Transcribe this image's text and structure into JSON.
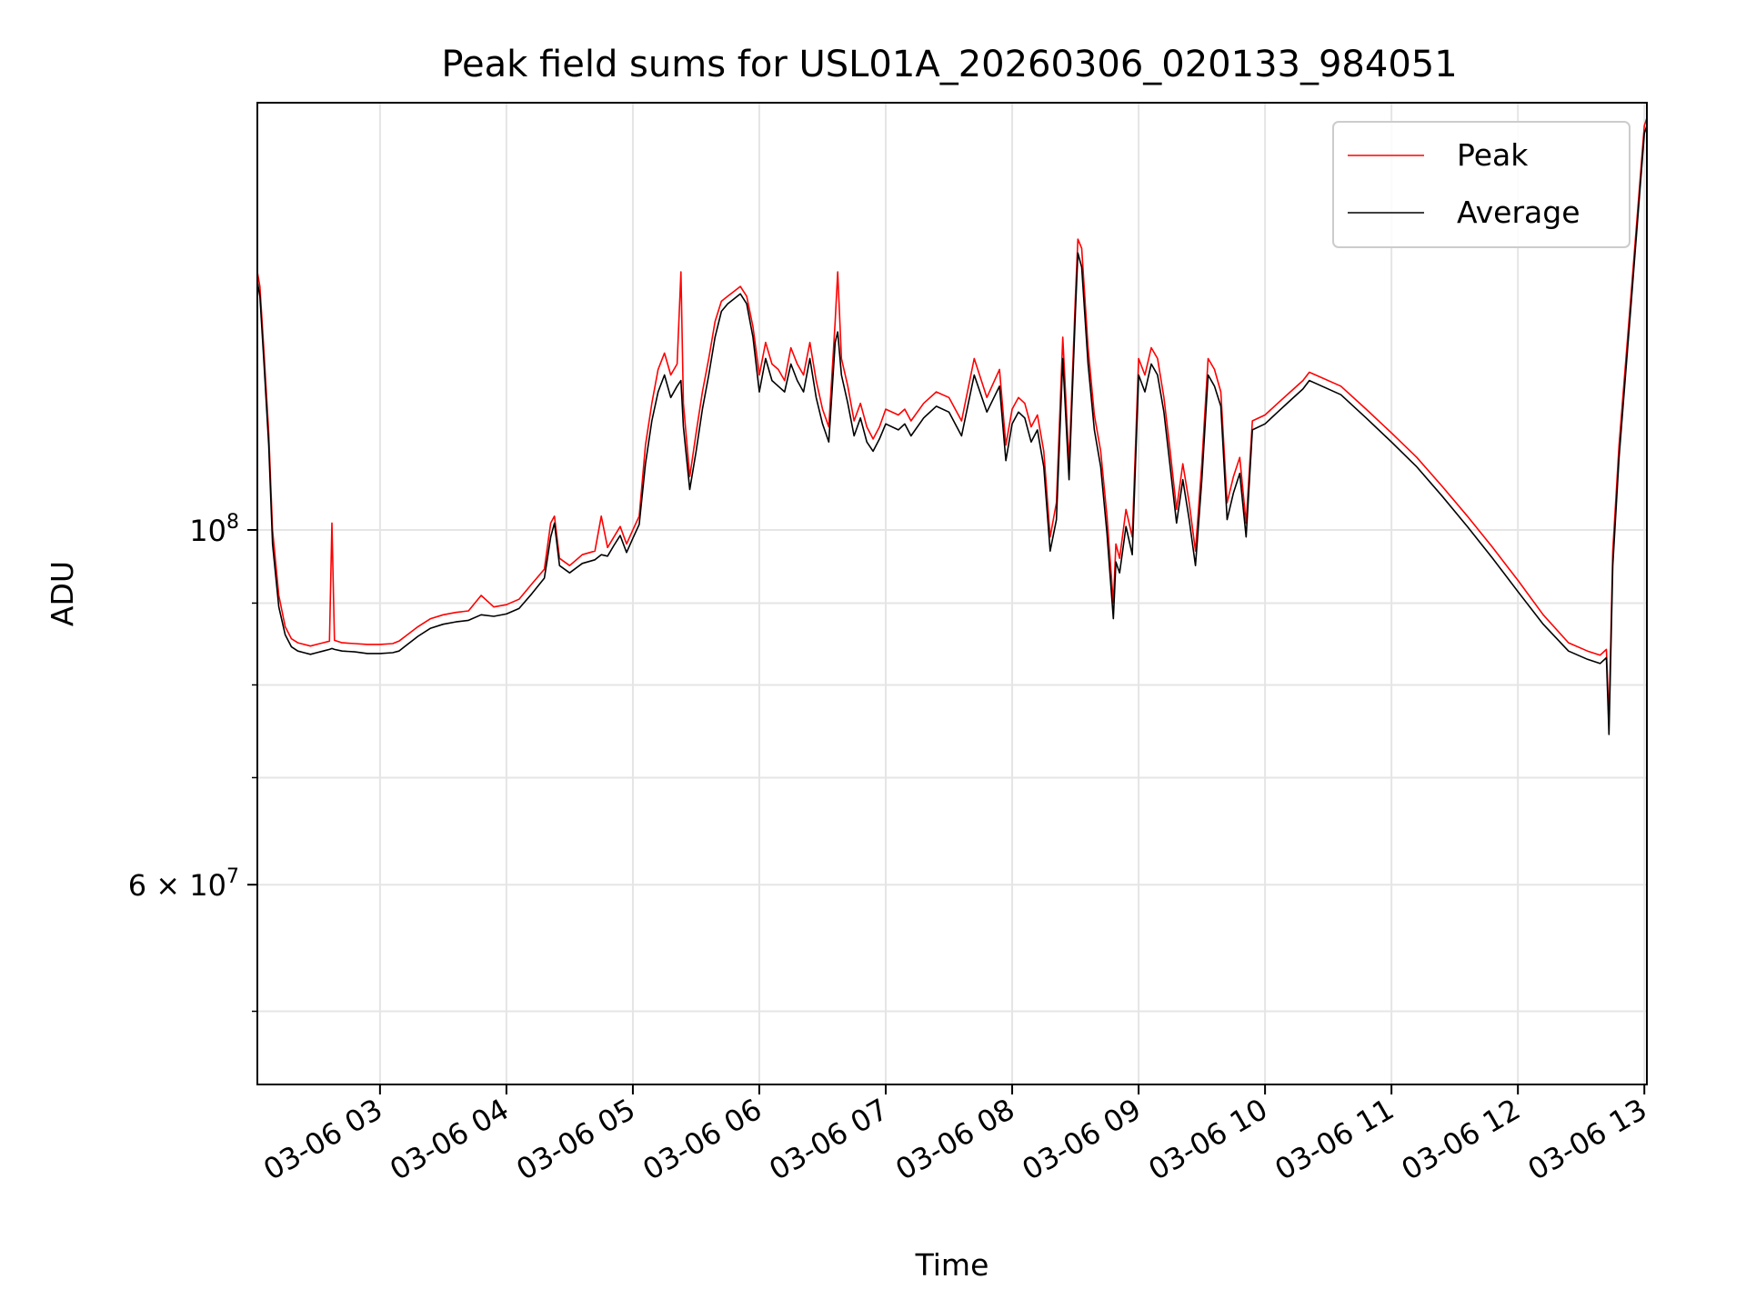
{
  "chart_data": {
    "type": "line",
    "title": "Peak field sums for USL01A_20260306_020133_984051",
    "xlabel": "Time",
    "ylabel": "ADU",
    "yscale": "log",
    "ylim": [
      45000000,
      185000000
    ],
    "xlim_hours": [
      2.03,
      13.02
    ],
    "x_unit": "hours since 2026-03-06 00:00",
    "grid": true,
    "legend_position": "top-right",
    "x_ticks": [
      {
        "value": 3,
        "label": "03-06 03"
      },
      {
        "value": 4,
        "label": "03-06 04"
      },
      {
        "value": 5,
        "label": "03-06 05"
      },
      {
        "value": 6,
        "label": "03-06 06"
      },
      {
        "value": 7,
        "label": "03-06 07"
      },
      {
        "value": 8,
        "label": "03-06 08"
      },
      {
        "value": 9,
        "label": "03-06 09"
      },
      {
        "value": 10,
        "label": "03-06 10"
      },
      {
        "value": 11,
        "label": "03-06 11"
      },
      {
        "value": 12,
        "label": "03-06 12"
      },
      {
        "value": 13,
        "label": "03-06 13"
      }
    ],
    "y_major_ticks": [
      {
        "value": 100000000,
        "base": "10",
        "exp": "8",
        "label": "10^8"
      },
      {
        "value": 60000000,
        "mantissa": "6",
        "base": "10",
        "exp": "7",
        "label": "6 × 10^7"
      }
    ],
    "y_minor_ticks": [
      50000000,
      70000000,
      80000000,
      90000000
    ],
    "series": [
      {
        "name": "Peak",
        "color": "#ff0000",
        "x": [
          2.03,
          2.05,
          2.08,
          2.12,
          2.15,
          2.2,
          2.25,
          2.3,
          2.35,
          2.4,
          2.45,
          2.5,
          2.55,
          2.6,
          2.62,
          2.64,
          2.7,
          2.8,
          2.9,
          3.0,
          3.1,
          3.15,
          3.2,
          3.3,
          3.4,
          3.5,
          3.6,
          3.7,
          3.8,
          3.9,
          4.0,
          4.1,
          4.2,
          4.3,
          4.35,
          4.38,
          4.42,
          4.5,
          4.6,
          4.7,
          4.75,
          4.8,
          4.85,
          4.9,
          4.95,
          5.0,
          5.05,
          5.1,
          5.15,
          5.2,
          5.25,
          5.3,
          5.35,
          5.38,
          5.4,
          5.45,
          5.5,
          5.55,
          5.6,
          5.65,
          5.7,
          5.75,
          5.8,
          5.85,
          5.9,
          5.95,
          6.0,
          6.05,
          6.1,
          6.15,
          6.2,
          6.25,
          6.3,
          6.35,
          6.4,
          6.45,
          6.5,
          6.55,
          6.6,
          6.62,
          6.65,
          6.7,
          6.75,
          6.8,
          6.85,
          6.9,
          6.95,
          7.0,
          7.1,
          7.15,
          7.2,
          7.3,
          7.4,
          7.5,
          7.6,
          7.7,
          7.8,
          7.9,
          7.95,
          8.0,
          8.05,
          8.1,
          8.15,
          8.2,
          8.25,
          8.3,
          8.35,
          8.4,
          8.45,
          8.5,
          8.52,
          8.55,
          8.6,
          8.65,
          8.7,
          8.75,
          8.8,
          8.82,
          8.85,
          8.9,
          8.95,
          9.0,
          9.05,
          9.1,
          9.15,
          9.2,
          9.25,
          9.3,
          9.35,
          9.4,
          9.45,
          9.5,
          9.55,
          9.6,
          9.65,
          9.7,
          9.75,
          9.8,
          9.85,
          9.9,
          10.0,
          10.1,
          10.2,
          10.3,
          10.35,
          10.4,
          10.6,
          10.8,
          11.0,
          11.2,
          11.4,
          11.6,
          11.8,
          12.0,
          12.2,
          12.4,
          12.55,
          12.65,
          12.7,
          12.72,
          12.75,
          12.8,
          12.9,
          13.0,
          13.02
        ],
        "values": [
          145000000.0,
          142000000.0,
          130000000.0,
          115000000.0,
          100000000.0,
          91000000.0,
          87000000.0,
          85500000.0,
          85000000.0,
          84800000.0,
          84600000.0,
          84800000.0,
          85000000.0,
          85200000.0,
          101000000.0,
          85300000.0,
          85000000.0,
          84900000.0,
          84800000.0,
          84800000.0,
          84900000.0,
          85200000.0,
          85800000.0,
          87000000.0,
          88000000.0,
          88500000.0,
          88800000.0,
          89000000.0,
          91000000.0,
          89500000.0,
          89800000.0,
          90500000.0,
          92500000.0,
          94500000.0,
          101000000.0,
          102000000.0,
          96000000.0,
          95000000.0,
          96500000.0,
          97000000.0,
          102000000.0,
          97500000.0,
          99000000.0,
          100500000.0,
          98000000.0,
          100000000.0,
          102000000.0,
          113000000.0,
          120000000.0,
          126000000.0,
          129000000.0,
          125000000.0,
          127000000.0,
          145000000.0,
          120000000.0,
          108000000.0,
          115000000.0,
          122000000.0,
          128000000.0,
          135000000.0,
          139000000.0,
          140000000.0,
          141000000.0,
          142000000.0,
          140000000.0,
          134000000.0,
          125000000.0,
          131000000.0,
          127000000.0,
          126000000.0,
          124000000.0,
          130000000.0,
          127000000.0,
          125000000.0,
          131000000.0,
          124000000.0,
          119000000.0,
          116000000.0,
          135000000.0,
          145000000.0,
          128000000.0,
          123000000.0,
          117000000.0,
          120000000.0,
          116000000.0,
          114000000.0,
          116000000.0,
          119000000.0,
          118000000.0,
          119000000.0,
          117000000.0,
          120000000.0,
          122000000.0,
          121000000.0,
          117000000.0,
          128000000.0,
          121000000.0,
          126000000.0,
          113000000.0,
          119000000.0,
          121000000.0,
          120000000.0,
          116000000.0,
          118000000.0,
          112000000.0,
          99000000.0,
          104000000.0,
          132000000.0,
          110000000.0,
          140000000.0,
          152000000.0,
          150000000.0,
          130000000.0,
          118000000.0,
          112000000.0,
          102000000.0,
          90000000.0,
          98000000.0,
          96000000.0,
          103000000.0,
          99000000.0,
          128000000.0,
          125000000.0,
          130000000.0,
          128000000.0,
          121000000.0,
          112000000.0,
          103000000.0,
          110000000.0,
          104000000.0,
          97000000.0,
          110000000.0,
          128000000.0,
          126000000.0,
          122000000.0,
          104000000.0,
          108000000.0,
          111000000.0,
          101000000.0,
          117000000.0,
          118000000.0,
          120000000.0,
          122000000.0,
          124000000.0,
          125500000.0,
          125000000.0,
          123000000.0,
          119000000.0,
          115000000.0,
          111000000.0,
          106500000.0,
          102000000.0,
          97500000.0,
          93000000.0,
          88500000.0,
          85000000.0,
          84000000.0,
          83500000.0,
          84200000.0,
          76000000.0,
          97000000.0,
          113000000.0,
          142000000.0,
          179000000.0,
          181000000.0
        ]
      },
      {
        "name": "Average",
        "color": "#000000",
        "x": [
          2.03,
          2.05,
          2.08,
          2.12,
          2.15,
          2.2,
          2.25,
          2.3,
          2.35,
          2.4,
          2.45,
          2.5,
          2.55,
          2.6,
          2.62,
          2.64,
          2.7,
          2.8,
          2.9,
          3.0,
          3.1,
          3.15,
          3.2,
          3.3,
          3.4,
          3.5,
          3.6,
          3.7,
          3.8,
          3.9,
          4.0,
          4.1,
          4.2,
          4.3,
          4.35,
          4.38,
          4.42,
          4.5,
          4.6,
          4.7,
          4.75,
          4.8,
          4.85,
          4.9,
          4.95,
          5.0,
          5.05,
          5.1,
          5.15,
          5.2,
          5.25,
          5.3,
          5.35,
          5.38,
          5.4,
          5.45,
          5.5,
          5.55,
          5.6,
          5.65,
          5.7,
          5.75,
          5.8,
          5.85,
          5.9,
          5.95,
          6.0,
          6.05,
          6.1,
          6.15,
          6.2,
          6.25,
          6.3,
          6.35,
          6.4,
          6.45,
          6.5,
          6.55,
          6.6,
          6.62,
          6.65,
          6.7,
          6.75,
          6.8,
          6.85,
          6.9,
          6.95,
          7.0,
          7.1,
          7.15,
          7.2,
          7.3,
          7.4,
          7.5,
          7.6,
          7.7,
          7.8,
          7.9,
          7.95,
          8.0,
          8.05,
          8.1,
          8.15,
          8.2,
          8.25,
          8.3,
          8.35,
          8.4,
          8.45,
          8.5,
          8.52,
          8.55,
          8.6,
          8.65,
          8.7,
          8.75,
          8.8,
          8.82,
          8.85,
          8.9,
          8.95,
          9.0,
          9.05,
          9.1,
          9.15,
          9.2,
          9.25,
          9.3,
          9.35,
          9.4,
          9.45,
          9.5,
          9.55,
          9.6,
          9.65,
          9.7,
          9.75,
          9.8,
          9.85,
          9.9,
          10.0,
          10.1,
          10.2,
          10.3,
          10.35,
          10.4,
          10.6,
          10.8,
          11.0,
          11.2,
          11.4,
          11.6,
          11.8,
          12.0,
          12.2,
          12.4,
          12.55,
          12.65,
          12.7,
          12.72,
          12.75,
          12.8,
          12.9,
          13.0,
          13.02
        ],
        "values": [
          143000000.0,
          140000000.0,
          128000000.0,
          113000000.0,
          98000000.0,
          89500000.0,
          86000000.0,
          84500000.0,
          84000000.0,
          83800000.0,
          83600000.0,
          83800000.0,
          84000000.0,
          84200000.0,
          84300000.0,
          84200000.0,
          84000000.0,
          83900000.0,
          83700000.0,
          83700000.0,
          83800000.0,
          84000000.0,
          84600000.0,
          85800000.0,
          86800000.0,
          87300000.0,
          87600000.0,
          87800000.0,
          88500000.0,
          88300000.0,
          88600000.0,
          89300000.0,
          91200000.0,
          93300000.0,
          99000000.0,
          101000000.0,
          95000000.0,
          94000000.0,
          95300000.0,
          95800000.0,
          96500000.0,
          96300000.0,
          97800000.0,
          99200000.0,
          96800000.0,
          98800000.0,
          100800000.0,
          110000000.0,
          117000000.0,
          122000000.0,
          125000000.0,
          121000000.0,
          123000000.0,
          124000000.0,
          116000000.0,
          106000000.0,
          112000000.0,
          119000000.0,
          125000000.0,
          132000000.0,
          137000000.0,
          138500000.0,
          139500000.0,
          140500000.0,
          138500000.0,
          132000000.0,
          122000000.0,
          128000000.0,
          124000000.0,
          123000000.0,
          122000000.0,
          127000000.0,
          124000000.0,
          122000000.0,
          128000000.0,
          121000000.0,
          116500000.0,
          113500000.0,
          131000000.0,
          133000000.0,
          125000000.0,
          120000000.0,
          114500000.0,
          117500000.0,
          113500000.0,
          112000000.0,
          114000000.0,
          116500000.0,
          115500000.0,
          116500000.0,
          114500000.0,
          117500000.0,
          119500000.0,
          118500000.0,
          114500000.0,
          125000000.0,
          118500000.0,
          123000000.0,
          110500000.0,
          116500000.0,
          118500000.0,
          117500000.0,
          113500000.0,
          115500000.0,
          109500000.0,
          97000000.0,
          101500000.0,
          128000000.0,
          107500000.0,
          137000000.0,
          149000000.0,
          146000000.0,
          127000000.0,
          115500000.0,
          109500000.0,
          99500000.0,
          88000000.0,
          95500000.0,
          94000000.0,
          100500000.0,
          96500000.0,
          125000000.0,
          122000000.0,
          127000000.0,
          125000000.0,
          118500000.0,
          109500000.0,
          101000000.0,
          107500000.0,
          101500000.0,
          95000000.0,
          107500000.0,
          125000000.0,
          123000000.0,
          119500000.0,
          101500000.0,
          105500000.0,
          108500000.0,
          99000000.0,
          115500000.0,
          116500000.0,
          118500000.0,
          120500000.0,
          122500000.0,
          124000000.0,
          123500000.0,
          121500000.0,
          117500000.0,
          113500000.0,
          109500000.0,
          105000000.0,
          100500000.0,
          96000000.0,
          91500000.0,
          87300000.0,
          84000000.0,
          83000000.0,
          82500000.0,
          83200000.0,
          74500000.0,
          95000000.0,
          111000000.0,
          140000000.0,
          177000000.0,
          179000000.0
        ]
      }
    ]
  }
}
